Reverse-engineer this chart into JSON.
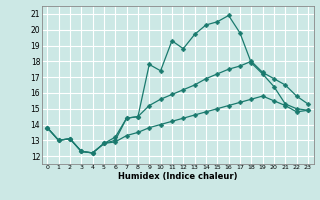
{
  "xlabel": "Humidex (Indice chaleur)",
  "background_color": "#cce8e5",
  "grid_color": "#ffffff",
  "line_color": "#1a7a6e",
  "xlim": [
    -0.5,
    23.5
  ],
  "ylim": [
    11.5,
    21.5
  ],
  "xticks": [
    0,
    1,
    2,
    3,
    4,
    5,
    6,
    7,
    8,
    9,
    10,
    11,
    12,
    13,
    14,
    15,
    16,
    17,
    18,
    19,
    20,
    21,
    22,
    23
  ],
  "yticks": [
    12,
    13,
    14,
    15,
    16,
    17,
    18,
    19,
    20,
    21
  ],
  "line1_x": [
    0,
    1,
    2,
    3,
    4,
    5,
    6,
    7,
    8,
    9,
    10,
    11,
    12,
    13,
    14,
    15,
    16,
    17,
    18,
    19,
    20,
    21,
    22,
    23
  ],
  "line1_y": [
    13.8,
    13.0,
    13.1,
    12.3,
    12.2,
    12.8,
    13.0,
    14.4,
    14.5,
    17.8,
    17.4,
    19.3,
    18.8,
    19.7,
    20.3,
    20.5,
    20.9,
    19.8,
    17.9,
    17.2,
    16.4,
    15.3,
    15.0,
    14.9
  ],
  "line2_x": [
    0,
    1,
    2,
    3,
    4,
    5,
    6,
    7,
    8,
    9,
    10,
    11,
    12,
    13,
    14,
    15,
    16,
    17,
    18,
    19,
    20,
    21,
    22,
    23
  ],
  "line2_y": [
    13.8,
    13.0,
    13.1,
    12.3,
    12.2,
    12.8,
    13.2,
    14.4,
    14.5,
    15.2,
    15.6,
    15.9,
    16.2,
    16.5,
    16.9,
    17.2,
    17.5,
    17.7,
    18.0,
    17.3,
    16.9,
    16.5,
    15.8,
    15.3
  ],
  "line3_x": [
    0,
    1,
    2,
    3,
    4,
    5,
    6,
    7,
    8,
    9,
    10,
    11,
    12,
    13,
    14,
    15,
    16,
    17,
    18,
    19,
    20,
    21,
    22,
    23
  ],
  "line3_y": [
    13.8,
    13.0,
    13.1,
    12.3,
    12.2,
    12.8,
    12.9,
    13.3,
    13.5,
    13.8,
    14.0,
    14.2,
    14.4,
    14.6,
    14.8,
    15.0,
    15.2,
    15.4,
    15.6,
    15.8,
    15.5,
    15.2,
    14.8,
    14.9
  ]
}
